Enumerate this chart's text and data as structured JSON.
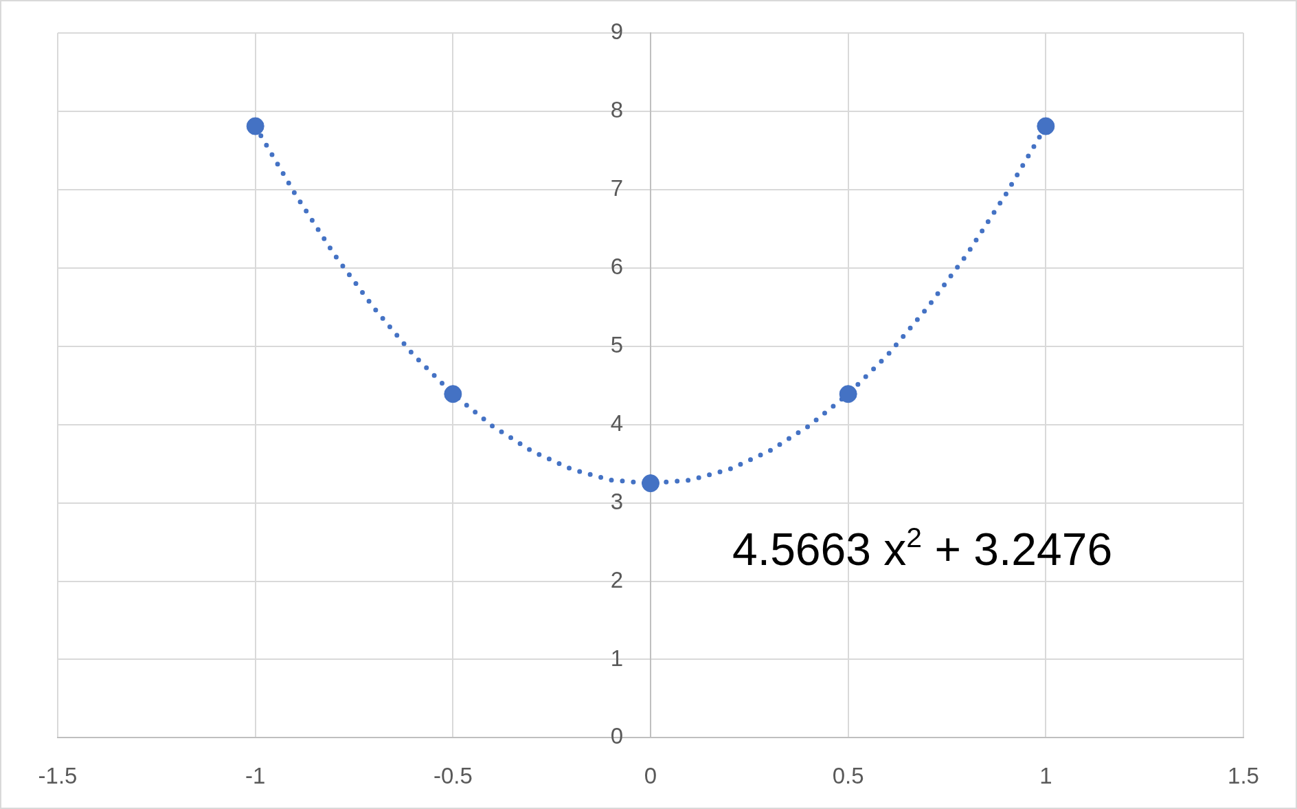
{
  "chart_data": {
    "type": "scatter",
    "x": [
      -1,
      -0.5,
      0,
      0.5,
      1
    ],
    "series": [
      {
        "color": "#4472c4",
        "marker": "circle",
        "values": [
          7.81,
          4.39,
          3.25,
          4.39,
          7.81
        ]
      },
      {
        "type": "line",
        "color": "#4472c4",
        "line_style": "dotted",
        "marker": "none",
        "x": [
          -1,
          -0.9,
          -0.8,
          -0.7,
          -0.6,
          -0.5,
          -0.4,
          -0.3,
          -0.2,
          -0.1,
          0,
          0.1,
          0.2,
          0.3,
          0.4,
          0.5,
          0.6,
          0.7,
          0.8,
          0.9,
          1
        ],
        "values": [
          7.81,
          6.95,
          6.17,
          5.49,
          4.89,
          4.39,
          3.98,
          3.66,
          3.43,
          3.29,
          3.25,
          3.29,
          3.43,
          3.66,
          3.98,
          4.39,
          4.89,
          5.49,
          6.17,
          6.95,
          7.81
        ]
      }
    ],
    "xlim": [
      -1.5,
      1.5
    ],
    "xticks": [
      -1.5,
      -1,
      -0.5,
      0,
      0.5,
      1,
      1.5
    ],
    "ylim": [
      0,
      9
    ],
    "yticks": [
      0,
      1,
      2,
      3,
      4,
      5,
      6,
      7,
      8,
      9
    ],
    "grid": true,
    "annotations": [
      "4.5663 x$^{2}$ + 3.2476"
    ]
  }
}
